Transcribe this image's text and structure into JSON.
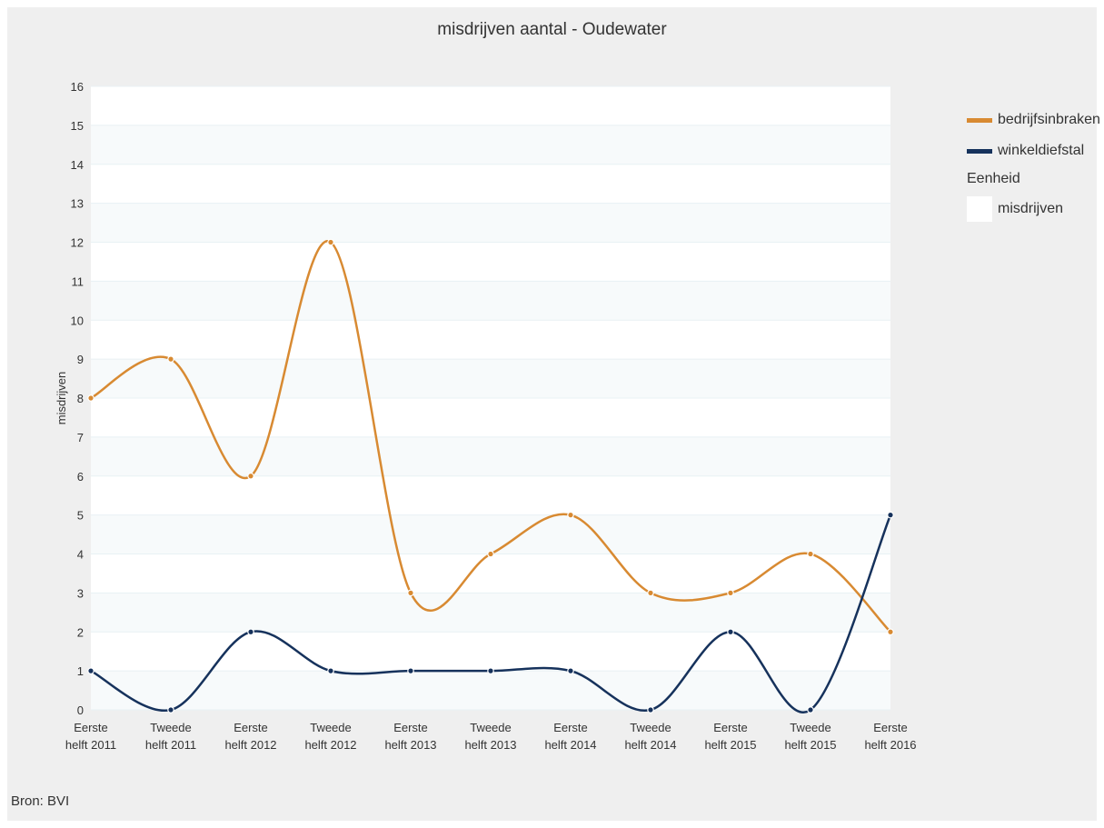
{
  "chart_data": {
    "type": "line",
    "title": "misdrijven aantal - Oudewater",
    "ylabel": "misdrijven",
    "xlabel": "",
    "ylim": [
      0,
      16
    ],
    "yticks": [
      0,
      1,
      2,
      3,
      4,
      5,
      6,
      7,
      8,
      9,
      10,
      11,
      12,
      13,
      14,
      15,
      16
    ],
    "categories": [
      [
        "Eerste",
        "helft 2011"
      ],
      [
        "Tweede",
        "helft 2011"
      ],
      [
        "Eerste",
        "helft 2012"
      ],
      [
        "Tweede",
        "helft 2012"
      ],
      [
        "Eerste",
        "helft 2013"
      ],
      [
        "Tweede",
        "helft 2013"
      ],
      [
        "Eerste",
        "helft 2014"
      ],
      [
        "Tweede",
        "helft 2014"
      ],
      [
        "Eerste",
        "helft 2015"
      ],
      [
        "Tweede",
        "helft 2015"
      ],
      [
        "Eerste",
        "helft 2016"
      ]
    ],
    "series": [
      {
        "name": "bedrijfsinbraken",
        "color": "#d88a32",
        "values": [
          8,
          9,
          6,
          12,
          3,
          4,
          5,
          3,
          3,
          4,
          2
        ]
      },
      {
        "name": "winkeldiefstal",
        "color": "#16325c",
        "values": [
          1,
          0,
          2,
          1,
          1,
          1,
          1,
          0,
          2,
          0,
          5
        ]
      }
    ],
    "legend": {
      "placement": "right",
      "unit_title": "Eenheid",
      "unit_label": "misdrijven"
    },
    "grid": true
  },
  "source": "Bron: BVI"
}
